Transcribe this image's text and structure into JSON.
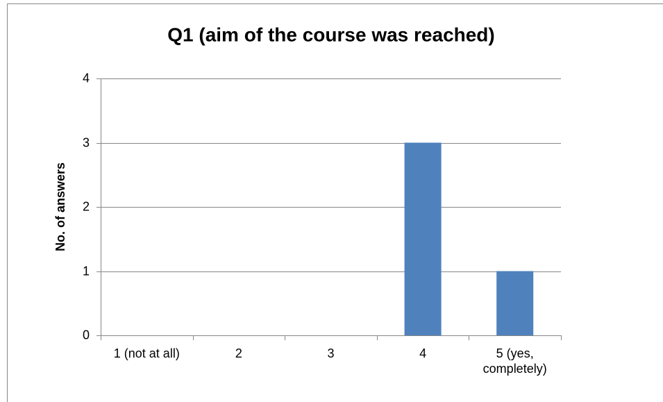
{
  "chart_data": {
    "type": "bar",
    "title": "Q1 (aim of the course was reached)",
    "y_label": "No. of answers",
    "categories": [
      "1 (not at all)",
      "2",
      "3",
      "4",
      "5 (yes, completely)"
    ],
    "values": [
      0,
      0,
      0,
      3,
      1
    ],
    "color": "#4f81bd",
    "ylim": [
      0,
      4
    ],
    "yticks": [
      0,
      1,
      2,
      3,
      4
    ],
    "grid": true
  }
}
